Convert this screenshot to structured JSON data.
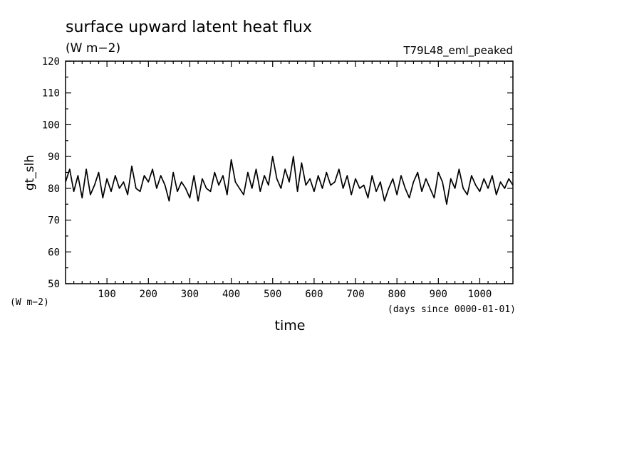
{
  "chart_data": {
    "type": "line",
    "title": "surface upward latent heat flux",
    "subtitle": "(W m−2)",
    "run_label": "T79L48_eml_peaked",
    "ylabel": "gt_slh",
    "yunit_label": "(W m−2)",
    "xlabel": "time",
    "xunit_label": "(days since 0000-01-01)",
    "xlim": [
      0,
      1080
    ],
    "ylim": [
      50,
      120
    ],
    "xticks": [
      100,
      200,
      300,
      400,
      500,
      600,
      700,
      800,
      900,
      1000
    ],
    "yticks": [
      50,
      60,
      70,
      80,
      90,
      100,
      110,
      120
    ],
    "grid": false,
    "line_color": "#000000",
    "series": [
      {
        "x": [
          0,
          10,
          20,
          30,
          40,
          50,
          60,
          70,
          80,
          90,
          100,
          110,
          120,
          130,
          140,
          150,
          160,
          170,
          180,
          190,
          200,
          210,
          220,
          230,
          240,
          250,
          260,
          270,
          280,
          290,
          300,
          310,
          320,
          330,
          340,
          350,
          360,
          370,
          380,
          390,
          400,
          410,
          420,
          430,
          440,
          450,
          460,
          470,
          480,
          490,
          500,
          510,
          520,
          530,
          540,
          550,
          560,
          570,
          580,
          590,
          600,
          610,
          620,
          630,
          640,
          650,
          660,
          670,
          680,
          690,
          700,
          710,
          720,
          730,
          740,
          750,
          760,
          770,
          780,
          790,
          800,
          810,
          820,
          830,
          840,
          850,
          860,
          870,
          880,
          890,
          900,
          910,
          920,
          930,
          940,
          950,
          960,
          970,
          980,
          990,
          1000,
          1010,
          1020,
          1030,
          1040,
          1050,
          1060,
          1070,
          1080
        ],
        "values": [
          82,
          86,
          79,
          84,
          77,
          86,
          78,
          81,
          85,
          77,
          83,
          79,
          84,
          80,
          82,
          78,
          87,
          80,
          79,
          84,
          82,
          86,
          80,
          84,
          81,
          76,
          85,
          79,
          82,
          80,
          77,
          84,
          76,
          83,
          80,
          79,
          85,
          81,
          84,
          78,
          89,
          82,
          80,
          78,
          85,
          80,
          86,
          79,
          84,
          81,
          90,
          83,
          80,
          86,
          82,
          90,
          79,
          88,
          81,
          83,
          79,
          84,
          80,
          85,
          81,
          82,
          86,
          80,
          84,
          78,
          83,
          80,
          81,
          77,
          84,
          79,
          82,
          76,
          80,
          83,
          78,
          84,
          80,
          77,
          82,
          85,
          79,
          83,
          80,
          77,
          85,
          82,
          75,
          83,
          80,
          86,
          80,
          78,
          84,
          81,
          79,
          83,
          80,
          84,
          78,
          82,
          80,
          83,
          81
        ]
      }
    ]
  }
}
